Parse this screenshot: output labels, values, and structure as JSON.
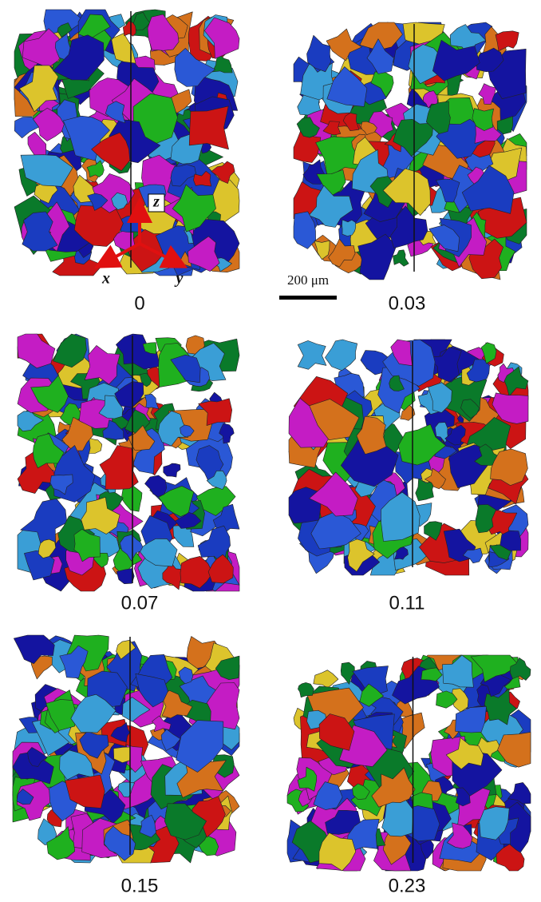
{
  "panels": [
    {
      "label": "0"
    },
    {
      "label": "0.03"
    },
    {
      "label": "0.07"
    },
    {
      "label": "0.11"
    },
    {
      "label": "0.15"
    },
    {
      "label": "0.23"
    }
  ],
  "scale_bar": {
    "label": "200 μm"
  },
  "axes": {
    "x": "x",
    "y": "y",
    "z": "z"
  }
}
